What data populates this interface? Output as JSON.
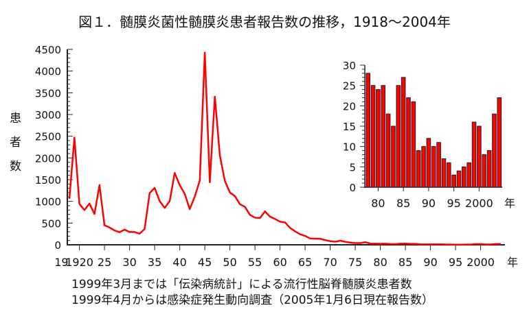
{
  "chart_data": [
    {
      "type": "line",
      "title": "図１．髄膜炎菌性髄膜炎患者報告数の推移，1918〜2004年",
      "ylabel_chars": [
        "患",
        "者",
        "数"
      ],
      "xlabel": "年",
      "ylim": [
        0,
        4500
      ],
      "yticks": [
        0,
        500,
        1000,
        1500,
        2000,
        2500,
        3000,
        3500,
        4000,
        4500
      ],
      "xlim": [
        1918,
        2004
      ],
      "xticks": [
        1920,
        1925,
        1930,
        1935,
        1940,
        1945,
        1950,
        1955,
        1960,
        1965,
        1970,
        1975,
        1980,
        1985,
        1990,
        1995,
        2000
      ],
      "xtick_labels": [
        "1920",
        "25",
        "30",
        "35",
        "40",
        "45",
        "50",
        "55",
        "60",
        "65",
        "70",
        "75",
        "80",
        "85",
        "90",
        "95",
        "2000"
      ],
      "x_start_label": "19",
      "color": "#ff0000",
      "x": [
        1918,
        1919,
        1920,
        1921,
        1922,
        1923,
        1924,
        1925,
        1926,
        1927,
        1928,
        1929,
        1930,
        1931,
        1932,
        1933,
        1934,
        1935,
        1936,
        1937,
        1938,
        1939,
        1940,
        1941,
        1942,
        1943,
        1944,
        1945,
        1946,
        1947,
        1948,
        1949,
        1950,
        1951,
        1952,
        1953,
        1954,
        1955,
        1956,
        1957,
        1958,
        1959,
        1960,
        1961,
        1962,
        1963,
        1964,
        1965,
        1966,
        1967,
        1968,
        1969,
        1970,
        1971,
        1972,
        1973,
        1974,
        1975,
        1976,
        1977,
        1978,
        1979,
        1980,
        1981,
        1982,
        1983,
        1984,
        1985,
        1986,
        1987,
        1988,
        1989,
        1990,
        1991,
        1992,
        1993,
        1994,
        1995,
        1996,
        1997,
        1998,
        1999,
        2000,
        2001,
        2002,
        2003,
        2004
      ],
      "values": [
        1060,
        2470,
        940,
        800,
        950,
        710,
        1375,
        450,
        400,
        330,
        290,
        350,
        295,
        295,
        255,
        365,
        1190,
        1310,
        1005,
        850,
        1005,
        1655,
        1375,
        1175,
        820,
        1110,
        1480,
        4425,
        1440,
        3410,
        2060,
        1470,
        1205,
        1120,
        935,
        875,
        690,
        625,
        615,
        770,
        648,
        595,
        532,
        516,
        390,
        311,
        242,
        205,
        147,
        140,
        140,
        108,
        85,
        70,
        95,
        70,
        50,
        40,
        40,
        60,
        28,
        25,
        24,
        25,
        18,
        15,
        25,
        27,
        22,
        21,
        9,
        10,
        12,
        10,
        11,
        7,
        6,
        3,
        4,
        5,
        6,
        16,
        15,
        8,
        9,
        18,
        22
      ]
    },
    {
      "type": "bar",
      "title": "",
      "xlabel": "年",
      "ylim": [
        0,
        30
      ],
      "yticks": [
        0,
        5,
        10,
        15,
        20,
        25,
        30
      ],
      "xticks": [
        1980,
        1985,
        1990,
        1995,
        2000
      ],
      "xtick_labels": [
        "80",
        "85",
        "90",
        "95",
        "2000"
      ],
      "color": "#ff0000",
      "categories": [
        1978,
        1979,
        1980,
        1981,
        1982,
        1983,
        1984,
        1985,
        1986,
        1987,
        1988,
        1989,
        1990,
        1991,
        1992,
        1993,
        1994,
        1995,
        1996,
        1997,
        1998,
        1999,
        2000,
        2001,
        2002,
        2003,
        2004
      ],
      "values": [
        28,
        25,
        24,
        25,
        18,
        15,
        25,
        27,
        22,
        21,
        9,
        10,
        12,
        10,
        11,
        7,
        6,
        3,
        4,
        5,
        6,
        16,
        15,
        8,
        9,
        18,
        22
      ]
    }
  ],
  "notes": [
    "1999年3月までは「伝染病統計」による流行性脳脊髄膜炎患者数",
    "1999年4月からは感染症発生動向調査（2005年1月6日現在報告数）"
  ]
}
